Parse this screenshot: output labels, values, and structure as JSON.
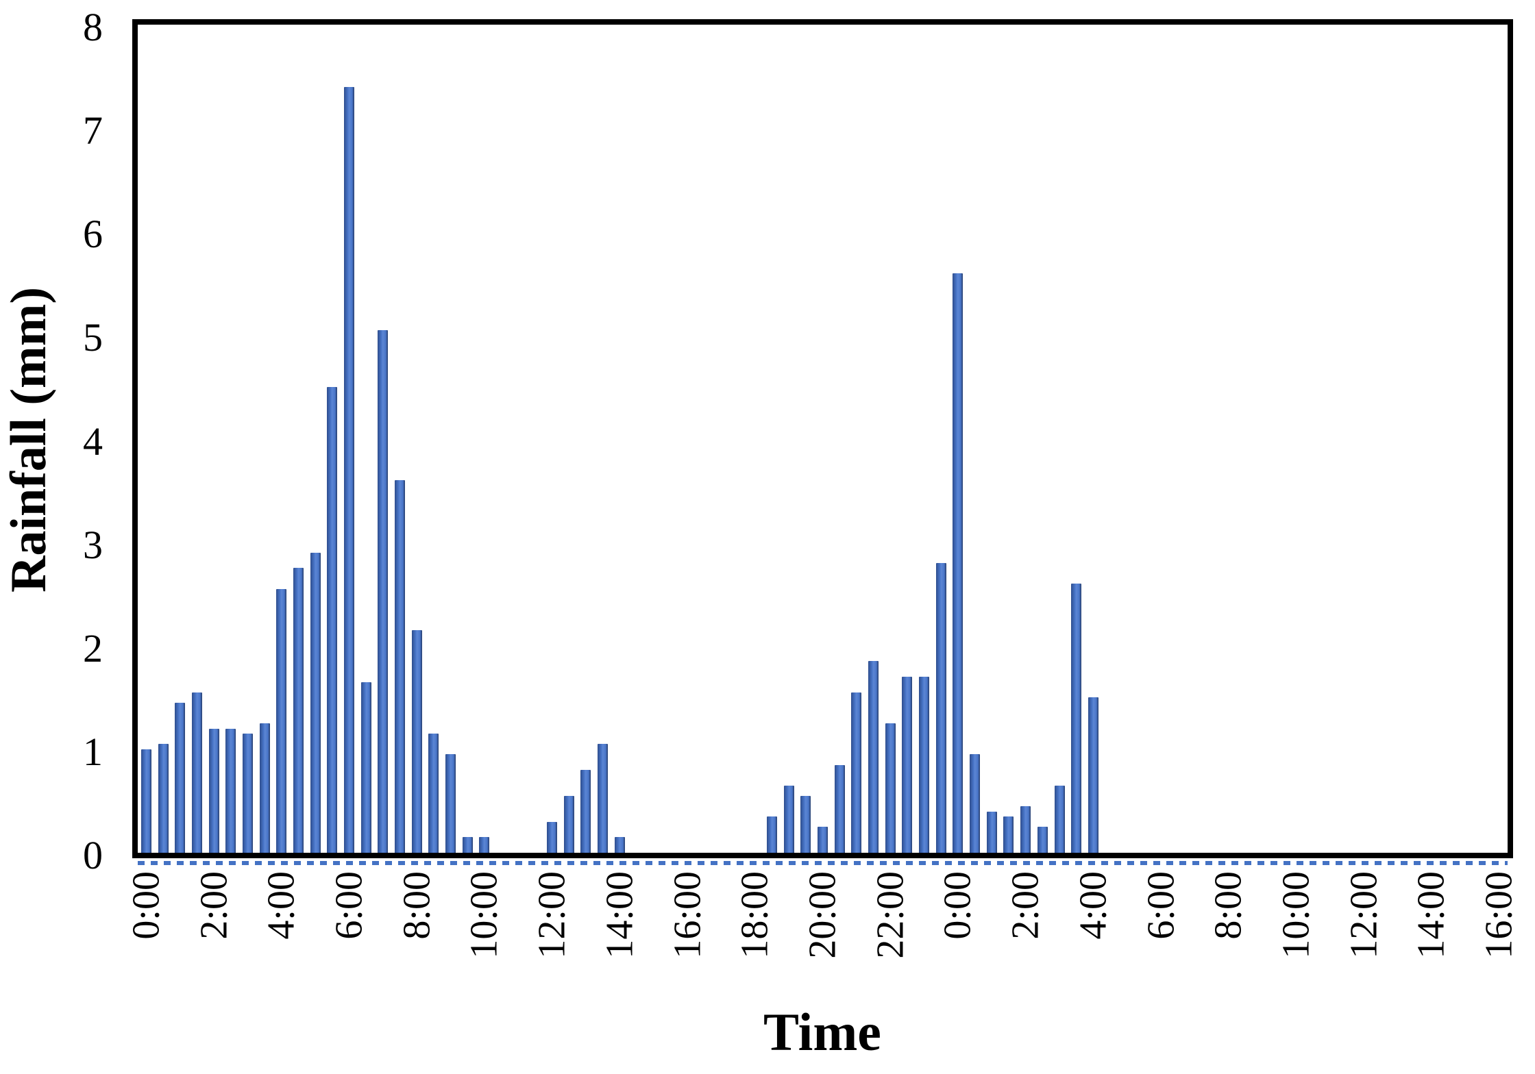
{
  "chart_data": {
    "type": "bar",
    "title": "",
    "xlabel": "Time",
    "ylabel": "Rainfall (mm)",
    "ylim": [
      0,
      8
    ],
    "y_ticks": [
      0,
      1,
      2,
      3,
      4,
      5,
      6,
      7,
      8
    ],
    "x_tick_labels": [
      "0:00",
      "2:00",
      "4:00",
      "6:00",
      "8:00",
      "10:00",
      "12:00",
      "14:00",
      "16:00",
      "18:00",
      "20:00",
      "22:00",
      "0:00",
      "2:00",
      "4:00",
      "6:00",
      "8:00",
      "10:00",
      "12:00",
      "14:00",
      "16:00"
    ],
    "bar_interval_minutes": 30,
    "grid": false,
    "legend": "none",
    "bar_color": "#4a77cb",
    "bar_edge_color": "#2e4d8c",
    "axis_color": "#000000",
    "zero_dashline_color": "#4472c4",
    "categories": [
      "0:00",
      "0:30",
      "1:00",
      "1:30",
      "2:00",
      "2:30",
      "3:00",
      "3:30",
      "4:00",
      "4:30",
      "5:00",
      "5:30",
      "6:00",
      "6:30",
      "7:00",
      "7:30",
      "8:00",
      "8:30",
      "9:00",
      "9:30",
      "10:00",
      "10:30",
      "11:00",
      "11:30",
      "12:00",
      "12:30",
      "13:00",
      "13:30",
      "14:00",
      "14:30",
      "15:00",
      "15:30",
      "16:00",
      "16:30",
      "17:00",
      "17:30",
      "18:00",
      "18:30",
      "19:00",
      "19:30",
      "20:00",
      "20:30",
      "21:00",
      "21:30",
      "22:00",
      "22:30",
      "23:00",
      "23:30",
      "0:00",
      "0:30",
      "1:00",
      "1:30",
      "2:00",
      "2:30",
      "3:00",
      "3:30",
      "4:00",
      "4:30",
      "5:00",
      "5:30",
      "6:00",
      "6:30",
      "7:00",
      "7:30",
      "8:00",
      "8:30",
      "9:00",
      "9:30",
      "10:00",
      "10:30",
      "11:00",
      "11:30",
      "12:00",
      "12:30",
      "13:00",
      "13:30",
      "14:00",
      "14:30",
      "15:00",
      "15:30",
      "16:00"
    ],
    "values": [
      1.0,
      1.05,
      1.45,
      1.55,
      1.2,
      1.2,
      1.15,
      1.25,
      2.55,
      2.75,
      2.9,
      4.5,
      7.4,
      1.65,
      5.05,
      3.6,
      2.15,
      1.15,
      0.95,
      0.15,
      0.15,
      0,
      0,
      0,
      0.3,
      0.55,
      0.8,
      1.05,
      0.15,
      0,
      0,
      0,
      0,
      0,
      0,
      0,
      0,
      0.35,
      0.65,
      0.55,
      0.25,
      0.85,
      1.55,
      1.85,
      1.25,
      1.7,
      1.7,
      2.8,
      5.6,
      0.95,
      0.4,
      0.35,
      0.45,
      0.25,
      0.65,
      2.6,
      1.5,
      0,
      0,
      0,
      0,
      0,
      0,
      0,
      0,
      0,
      0,
      0,
      0,
      0,
      0,
      0,
      0,
      0,
      0,
      0,
      0,
      0,
      0,
      0,
      0
    ]
  }
}
